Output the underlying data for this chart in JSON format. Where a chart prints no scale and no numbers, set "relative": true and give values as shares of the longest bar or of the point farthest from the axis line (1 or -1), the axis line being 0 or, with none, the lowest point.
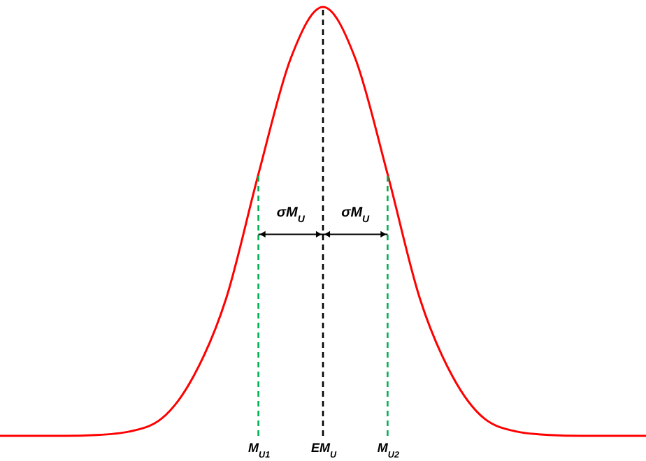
{
  "chart_data": {
    "type": "line",
    "relative": true,
    "categories": [
      null,
      null,
      null,
      null,
      null,
      null,
      null,
      null,
      "M$_{U1}$",
      null,
      "EM$_{U}$",
      null,
      "M$_{U2}$",
      null,
      null,
      null,
      null,
      null,
      null,
      null,
      null
    ],
    "series": [
      {
        "color": "#ff0000",
        "values": [
          0,
          0,
          0,
          0.002,
          0.01,
          0.04,
          0.14,
          0.32,
          0.61,
          0.88,
          1,
          0.88,
          0.61,
          0.32,
          0.14,
          0.04,
          0.01,
          0.002,
          0,
          0,
          0
        ]
      }
    ],
    "marker": "none",
    "line_style": "solid",
    "grid": false,
    "ref_lines": [
      {
        "axis": "x",
        "value": "M$_{U1}$",
        "color": "#00b050",
        "line_style": "dashed"
      },
      {
        "axis": "x",
        "value": "EM$_{U}$",
        "color": "#000000",
        "line_style": "dashed"
      },
      {
        "axis": "x",
        "value": "M$_{U2}$",
        "color": "#00b050",
        "line_style": "dashed"
      }
    ],
    "annotations": [
      "σM$_{U}$",
      "σM$_{U}$"
    ]
  }
}
